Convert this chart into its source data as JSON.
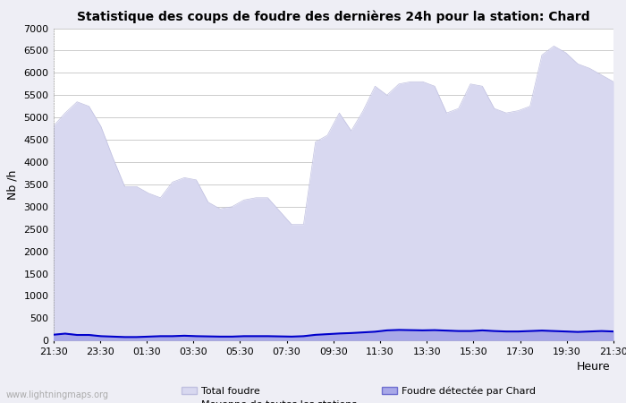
{
  "title": "Statistique des coups de foudre des dernières 24h pour la station: Chard",
  "xlabel": "Heure",
  "ylabel": "Nb /h",
  "ylim": [
    0,
    7000
  ],
  "yticks": [
    0,
    500,
    1000,
    1500,
    2000,
    2500,
    3000,
    3500,
    4000,
    4500,
    5000,
    5500,
    6000,
    6500,
    7000
  ],
  "xtick_labels": [
    "21:30",
    "23:30",
    "01:30",
    "03:30",
    "05:30",
    "07:30",
    "09:30",
    "11:30",
    "13:30",
    "15:30",
    "17:30",
    "19:30",
    "21:30"
  ],
  "bg_color": "#eeeef5",
  "plot_bg_color": "#ffffff",
  "total_foudre_color": "#d8d8f0",
  "total_foudre_edge": "#c0c0e0",
  "chard_color": "#a8a8e8",
  "chard_edge": "#7070d0",
  "mean_line_color": "#0000cc",
  "watermark": "www.lightningmaps.org",
  "total_foudre_values": [
    4800,
    5100,
    5350,
    5250,
    4800,
    4100,
    3450,
    3450,
    3300,
    3200,
    3550,
    3650,
    3600,
    3100,
    2950,
    3000,
    3150,
    3200,
    3200,
    2900,
    2600,
    2600,
    4450,
    4600,
    5100,
    4700,
    5150,
    5700,
    5500,
    5750,
    5800,
    5800,
    5700,
    5100,
    5200,
    5750,
    5700,
    5200,
    5100,
    5150,
    5250,
    6400,
    6600,
    6450,
    6200,
    6100,
    5950,
    5800
  ],
  "chard_values": [
    130,
    160,
    130,
    130,
    100,
    90,
    80,
    80,
    90,
    100,
    100,
    110,
    100,
    95,
    90,
    90,
    100,
    100,
    100,
    95,
    90,
    100,
    130,
    145,
    160,
    170,
    185,
    200,
    230,
    240,
    235,
    230,
    235,
    225,
    215,
    215,
    230,
    215,
    205,
    205,
    215,
    225,
    215,
    205,
    195,
    205,
    215,
    205
  ],
  "mean_values": [
    130,
    155,
    125,
    125,
    98,
    88,
    78,
    78,
    88,
    98,
    98,
    108,
    98,
    93,
    88,
    88,
    98,
    98,
    98,
    93,
    88,
    98,
    128,
    143,
    158,
    168,
    183,
    198,
    228,
    238,
    233,
    228,
    233,
    223,
    213,
    213,
    228,
    213,
    203,
    203,
    213,
    223,
    213,
    203,
    193,
    203,
    213,
    203
  ]
}
